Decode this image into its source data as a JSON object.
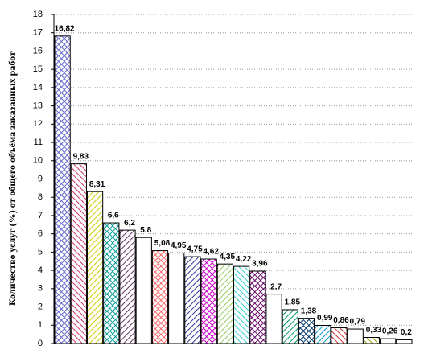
{
  "chart_data": {
    "type": "bar",
    "y_label": "Количество услуг (%) от общего объёма заказанных работ",
    "categories": [
      null,
      null,
      null,
      null,
      null,
      null,
      null,
      null,
      null,
      null,
      null,
      null,
      null,
      null,
      null,
      null,
      null,
      null,
      null,
      null,
      null,
      null
    ],
    "values": [
      16.82,
      9.83,
      8.31,
      6.6,
      6.2,
      5.8,
      5.08,
      4.95,
      4.75,
      4.62,
      4.35,
      4.22,
      3.96,
      2.7,
      1.85,
      1.38,
      0.99,
      0.86,
      0.79,
      0.33,
      0.26,
      0.2
    ],
    "value_labels": [
      "16,82",
      "9,83",
      "8,31",
      "6,6",
      "6,2",
      "5,8",
      "5,08",
      "4,95",
      "4,75",
      "4,62",
      "4,35",
      "4,22",
      "3,96",
      "2,7",
      "1,85",
      "1,38",
      "0,99",
      "0,86",
      "0,79",
      "0,33",
      "0,26",
      "0,2"
    ],
    "colors": [
      "#6666cc",
      "#cc3366",
      "#cccc00",
      "#009999",
      "#663366",
      "#ffffff",
      "#ff6666",
      "#ffffff",
      "#333399",
      "#cc00cc",
      "#99cc66",
      "#33cccc",
      "#660066",
      "#ffffff",
      "#009966",
      "#003366",
      "#0099cc",
      "#cc3333",
      "#ffffff",
      "#999900",
      "#ffffff",
      "#ffffff"
    ],
    "ylim": [
      0,
      18
    ],
    "yticks": [
      0,
      1,
      2,
      3,
      4,
      5,
      6,
      7,
      8,
      9,
      10,
      11,
      12,
      13,
      14,
      15,
      16,
      17,
      18
    ],
    "grid": true
  }
}
